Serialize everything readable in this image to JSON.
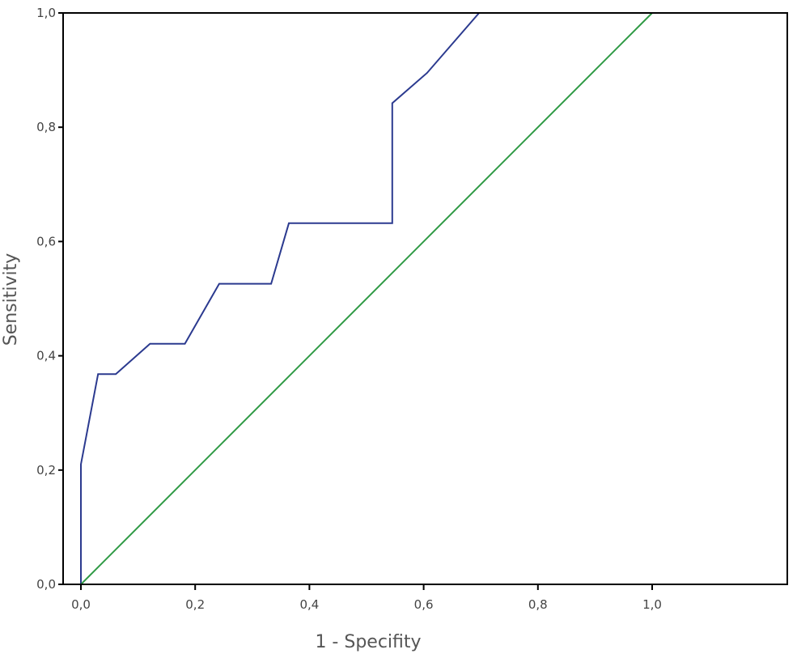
{
  "chart_data": {
    "type": "line",
    "xlabel": "1 - Specifity",
    "ylabel": "Sensitivity",
    "xlim": [
      0,
      1.2
    ],
    "ylim": [
      0,
      1.0
    ],
    "x_ticks": [
      "0,0",
      "0,2",
      "0,4",
      "0,6",
      "0,8",
      "1,0"
    ],
    "y_ticks": [
      "0,0",
      "0,2",
      "0,4",
      "0,6",
      "0,8",
      "1,0"
    ],
    "grid": false,
    "legend": "none",
    "series": [
      {
        "color": "#2b3a8f",
        "x": [
          0.0,
          0.0,
          0.0,
          0.03,
          0.061,
          0.121,
          0.182,
          0.242,
          0.333,
          0.364,
          0.545,
          0.545,
          0.606,
          0.697,
          1.0
        ],
        "y": [
          0.0,
          0.21,
          0.21,
          0.368,
          0.368,
          0.421,
          0.421,
          0.526,
          0.526,
          0.632,
          0.632,
          0.842,
          0.895,
          1.0,
          1.0
        ]
      },
      {
        "color": "#2f9a45",
        "x": [
          0.0,
          1.0
        ],
        "y": [
          0.0,
          1.0
        ]
      }
    ]
  }
}
